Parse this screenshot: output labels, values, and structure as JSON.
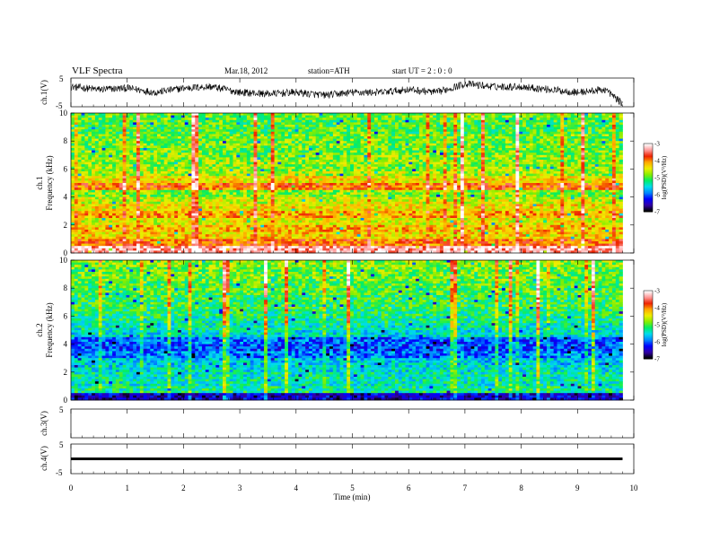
{
  "header": {
    "title": "VLF Spectra",
    "date": "Mar.18, 2012",
    "station": "station=ATH",
    "start": "start  UT =   2 : 0 : 0"
  },
  "chart_data": [
    {
      "type": "line",
      "name": "ch.1 waveform",
      "ylabel": "ch.1(V)",
      "ylim": [
        -5,
        5
      ],
      "yticks": [
        "5",
        "-5"
      ],
      "xlim": [
        0,
        10
      ],
      "x": [
        0.0,
        0.5,
        1.0,
        1.5,
        2.0,
        2.5,
        3.0,
        3.5,
        4.0,
        4.5,
        5.0,
        5.5,
        6.0,
        6.5,
        7.0,
        7.5,
        8.0,
        8.5,
        9.0,
        9.5,
        9.8
      ],
      "y": [
        2,
        1,
        1.5,
        0,
        1.5,
        2,
        0,
        -0.5,
        0,
        -1,
        0,
        0,
        1,
        0,
        3,
        2,
        2,
        1,
        0,
        1,
        -4
      ]
    },
    {
      "type": "heatmap",
      "name": "ch.1 spectrogram",
      "ylabel": "ch.1\nFrequency (kHz)",
      "ylabel_lines": [
        "ch.1",
        "Frequency (kHz)"
      ],
      "ylim": [
        0,
        10
      ],
      "yticks": [
        "0",
        "2",
        "4",
        "6",
        "8",
        "10"
      ],
      "xlim": [
        0,
        9.8
      ],
      "colorbar": {
        "label": "log(PSD)(V²/Hz)",
        "ticks": [
          "-3",
          "-4",
          "-5",
          "-6",
          "-7"
        ],
        "range": [
          -7,
          -3
        ]
      },
      "freq_bins_kHz": [
        0.25,
        0.75,
        1.25,
        1.75,
        2.25,
        2.75,
        3.25,
        3.75,
        4.25,
        4.75,
        5.25,
        5.75,
        6.25,
        6.75,
        7.25,
        7.75,
        8.25,
        8.75,
        9.25,
        9.75
      ],
      "mean_log_psd": [
        -3.3,
        -3.9,
        -4.3,
        -4.2,
        -4.5,
        -4.1,
        -4.4,
        -4.6,
        -4.8,
        -3.9,
        -4.4,
        -4.7,
        -4.8,
        -4.8,
        -4.9,
        -4.9,
        -4.9,
        -5.0,
        -5.0,
        -4.9
      ]
    },
    {
      "type": "heatmap",
      "name": "ch.2 spectrogram",
      "ylabel": "ch.2\nFrequency (kHz)",
      "ylabel_lines": [
        "ch.2",
        "Frequency (kHz)"
      ],
      "ylim": [
        0,
        10
      ],
      "yticks": [
        "0",
        "2",
        "4",
        "6",
        "8",
        "10"
      ],
      "xlim": [
        0,
        9.8
      ],
      "colorbar": {
        "label": "log(PSD)(V²/Hz)",
        "ticks": [
          "-3",
          "-4",
          "-5",
          "-6",
          "-7"
        ],
        "range": [
          -7,
          -3
        ]
      },
      "freq_bins_kHz": [
        0.25,
        0.75,
        1.25,
        1.75,
        2.25,
        2.75,
        3.25,
        3.75,
        4.25,
        4.75,
        5.25,
        5.75,
        6.25,
        6.75,
        7.25,
        7.75,
        8.25,
        8.75,
        9.25,
        9.75
      ],
      "mean_log_psd": [
        -6.5,
        -5.3,
        -5.4,
        -5.4,
        -5.5,
        -5.6,
        -5.9,
        -6.1,
        -6.0,
        -5.5,
        -5.4,
        -5.3,
        -5.2,
        -5.1,
        -5.1,
        -5.0,
        -5.0,
        -4.9,
        -4.9,
        -4.8
      ]
    },
    {
      "type": "line",
      "name": "ch.3 waveform",
      "ylabel": "ch.3(V)",
      "ylim": [
        -5,
        5
      ],
      "yticks": [
        "5",
        ""
      ],
      "xlim": [
        0,
        10
      ],
      "x": [],
      "y": []
    },
    {
      "type": "line",
      "name": "ch.4 waveform",
      "ylabel": "ch.4(V)",
      "ylim": [
        -5,
        5
      ],
      "yticks": [
        "5",
        "-5"
      ],
      "xlim": [
        0,
        9.8
      ],
      "x": [
        0,
        9.8
      ],
      "y": [
        0,
        0
      ]
    }
  ],
  "xaxis": {
    "label": "Time  (min)",
    "ticks": [
      "0",
      "1",
      "2",
      "3",
      "4",
      "5",
      "6",
      "7",
      "8",
      "9",
      "10"
    ]
  },
  "colors": {
    "scale": [
      "#000000",
      "#3300aa",
      "#0000ff",
      "#0088ff",
      "#00ddee",
      "#00ee66",
      "#88ee00",
      "#eeee00",
      "#ffaa00",
      "#ee2200",
      "#ff9999",
      "#ffffff"
    ],
    "line": "#000000"
  }
}
